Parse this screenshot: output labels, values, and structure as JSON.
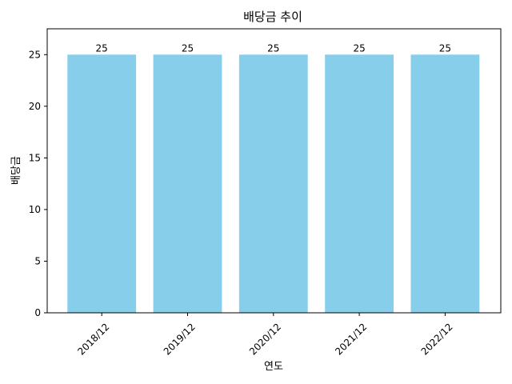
{
  "chart_data": {
    "type": "bar",
    "title": "배당금 추이",
    "xlabel": "연도",
    "ylabel": "배당금",
    "categories": [
      "2018/12",
      "2019/12",
      "2020/12",
      "2021/12",
      "2022/12"
    ],
    "values": [
      25,
      25,
      25,
      25,
      25
    ],
    "data_labels": [
      "25",
      "25",
      "25",
      "25",
      "25"
    ],
    "ylim": [
      0,
      27.5
    ],
    "yticks": [
      0,
      5,
      10,
      15,
      20,
      25
    ],
    "ytick_labels": [
      "0",
      "5",
      "10",
      "15",
      "20",
      "25"
    ],
    "xtick_rotation_deg": 45,
    "grid": false,
    "bar_color": "#87CEEB"
  }
}
